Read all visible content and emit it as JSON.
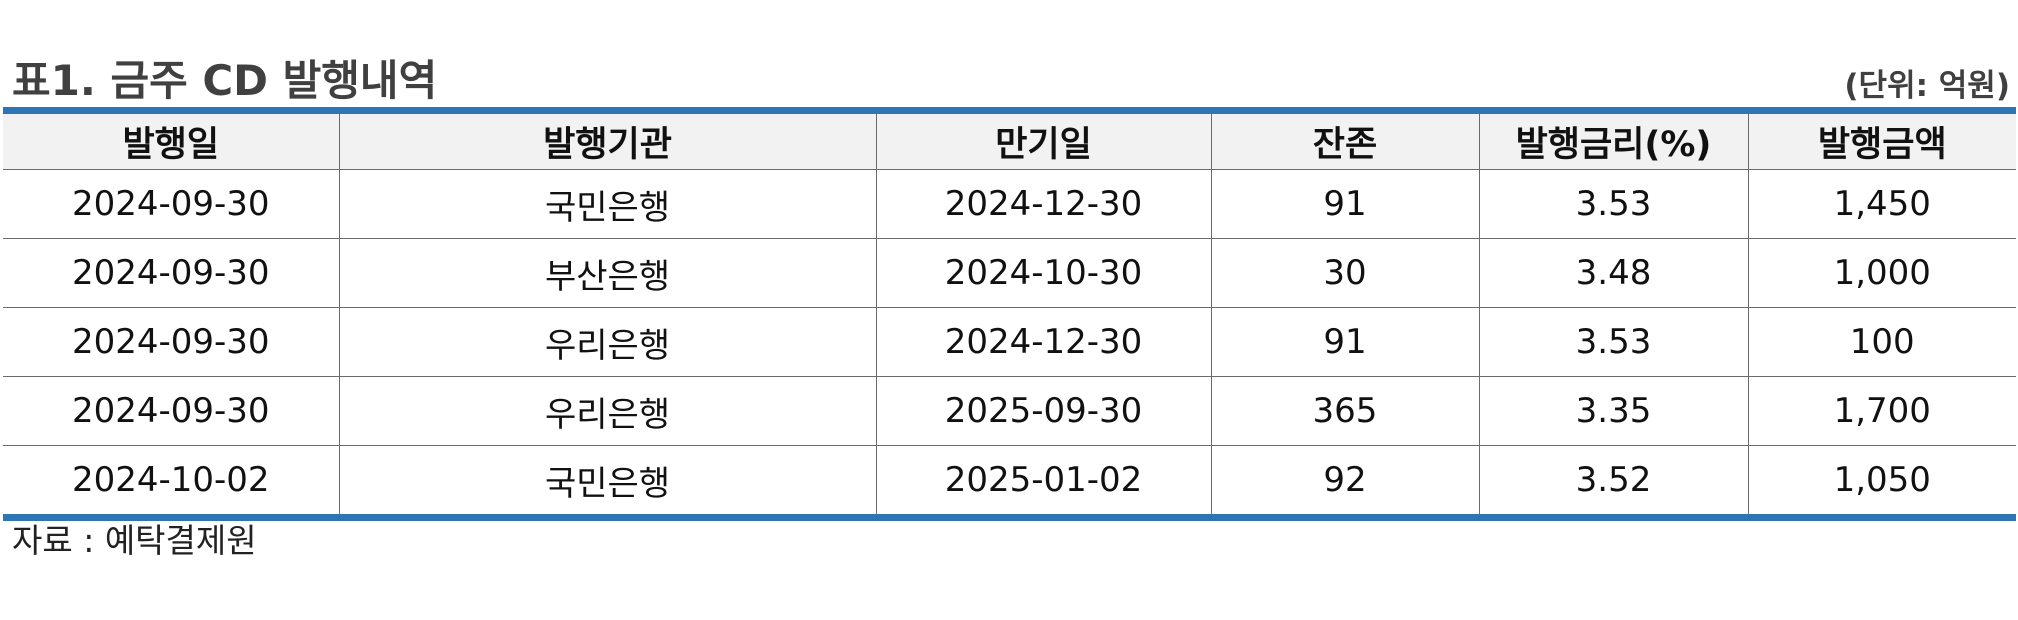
{
  "title": "표1. 금주 CD 발행내역",
  "unit": "(단위: 억원)",
  "table": {
    "headers": [
      "발행일",
      "발행기관",
      "만기일",
      "잔존",
      "발행금리(%)",
      "발행금액"
    ],
    "rows": [
      [
        "2024-09-30",
        "국민은행",
        "2024-12-30",
        "91",
        "3.53",
        "1,450"
      ],
      [
        "2024-09-30",
        "부산은행",
        "2024-10-30",
        "30",
        "3.48",
        "1,000"
      ],
      [
        "2024-09-30",
        "우리은행",
        "2024-12-30",
        "91",
        "3.53",
        "100"
      ],
      [
        "2024-09-30",
        "우리은행",
        "2025-09-30",
        "365",
        "3.35",
        "1,700"
      ],
      [
        "2024-10-02",
        "국민은행",
        "2025-01-02",
        "92",
        "3.52",
        "1,050"
      ]
    ]
  },
  "source": "자료 : 예탁결제원",
  "colors": {
    "rule": "#2E75B6",
    "header_bg": "#f2f2f2",
    "title_text": "#404040"
  }
}
